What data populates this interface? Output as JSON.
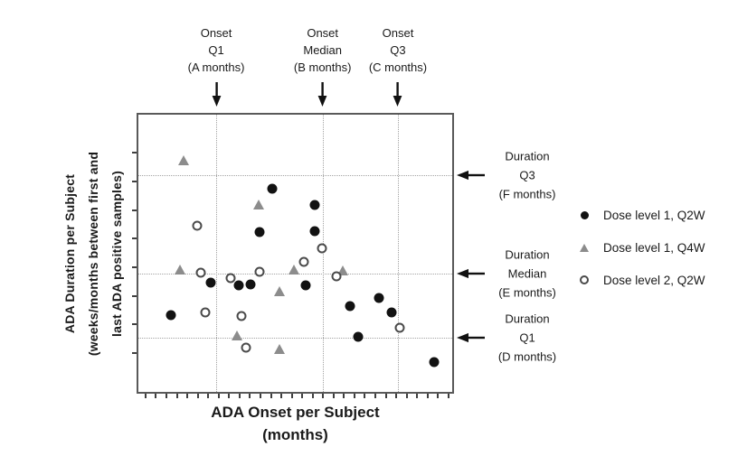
{
  "figure": {
    "background": "#ffffff",
    "plot_border_color": "#595959",
    "grid_color": "#a3a3a3",
    "text_color": "#1a1a1a"
  },
  "y_axis": {
    "label_line1": "ADA Duration per Subject",
    "label_line2": "(weeks/months between first and",
    "label_line3": "last ADA positive samples)"
  },
  "x_axis": {
    "label_line1": "ADA Onset per Subject",
    "label_line2": "(months)"
  },
  "top_annotations": [
    {
      "line1": "Onset",
      "line2": "Q1",
      "line3": "(A months)"
    },
    {
      "line1": "Onset",
      "line2": "Median",
      "line3": "(B months)"
    },
    {
      "line1": "Onset",
      "line2": "Q3",
      "line3": "(C months)"
    }
  ],
  "right_annotations": [
    {
      "line1": "Duration",
      "line2": "Q3",
      "line3": "(F months)"
    },
    {
      "line1": "Duration",
      "line2": "Median",
      "line3": "(E months)"
    },
    {
      "line1": "Duration",
      "line2": "Q1",
      "line3": "(D months)"
    }
  ],
  "legend": {
    "items": [
      {
        "label": "Dose level 1, Q2W",
        "marker": "filled-circle",
        "color": "#121212"
      },
      {
        "label": "Dose level 1, Q4W",
        "marker": "filled-triangle",
        "color": "#8c8c8c"
      },
      {
        "label": "Dose level 2, Q2W",
        "marker": "open-circle",
        "color": "#4a4a4a"
      }
    ]
  },
  "chart_data": {
    "type": "scatter",
    "title": "",
    "xlabel": "ADA Onset per Subject (months)",
    "ylabel": "ADA Duration per Subject (weeks/months between first and last ADA positive samples)",
    "axes_note": "Axis tick values are intentionally blinded (A-F month values). Point coordinates are percent of axis range: x from left, y from bottom.",
    "grid": "quartile reference lines only (dotted)",
    "legend_position": "right",
    "x_ticks_count": 30,
    "y_ticks_count": 8,
    "reference_lines": {
      "x": [
        {
          "name": "Onset Q1 (A months)",
          "pct": 24.8
        },
        {
          "name": "Onset Median (B months)",
          "pct": 58.7
        },
        {
          "name": "Onset Q3 (C months)",
          "pct": 82.7
        }
      ],
      "y": [
        {
          "name": "Duration Q3 (F months)",
          "pct": 78.3
        },
        {
          "name": "Duration Median (E months)",
          "pct": 42.6
        },
        {
          "name": "Duration Q1 (D months)",
          "pct": 19.5
        }
      ]
    },
    "series": [
      {
        "name": "Dose level 1, Q2W",
        "marker": "filled-circle",
        "color": "#121212",
        "points": [
          [
            42.7,
            73.3
          ],
          [
            56.1,
            67.5
          ],
          [
            38.5,
            57.6
          ],
          [
            56.1,
            57.9
          ],
          [
            23.1,
            39.5
          ],
          [
            31.9,
            38.3
          ],
          [
            35.6,
            38.9
          ],
          [
            53.3,
            38.3
          ],
          [
            10.3,
            27.7
          ],
          [
            67.5,
            30.9
          ],
          [
            76.6,
            33.8
          ],
          [
            80.6,
            28.6
          ],
          [
            70.1,
            19.9
          ],
          [
            94.3,
            10.6
          ]
        ]
      },
      {
        "name": "Dose level 1, Q4W",
        "marker": "filled-triangle",
        "color": "#8c8c8c",
        "points": [
          [
            14.5,
            83.3
          ],
          [
            38.2,
            67.5
          ],
          [
            13.4,
            44.1
          ],
          [
            49.6,
            44.1
          ],
          [
            65.2,
            43.7
          ],
          [
            45.0,
            36.0
          ],
          [
            31.3,
            20.3
          ],
          [
            45.0,
            15.4
          ]
        ]
      },
      {
        "name": "Dose level 2, Q2W",
        "marker": "open-circle",
        "color": "#4a4a4a",
        "points": [
          [
            18.8,
            59.8
          ],
          [
            19.9,
            43.1
          ],
          [
            29.3,
            41.2
          ],
          [
            38.7,
            43.4
          ],
          [
            52.7,
            46.9
          ],
          [
            58.4,
            51.8
          ],
          [
            63.0,
            41.8
          ],
          [
            21.4,
            28.6
          ],
          [
            32.8,
            27.3
          ],
          [
            34.2,
            15.8
          ],
          [
            83.2,
            23.2
          ]
        ]
      }
    ]
  }
}
